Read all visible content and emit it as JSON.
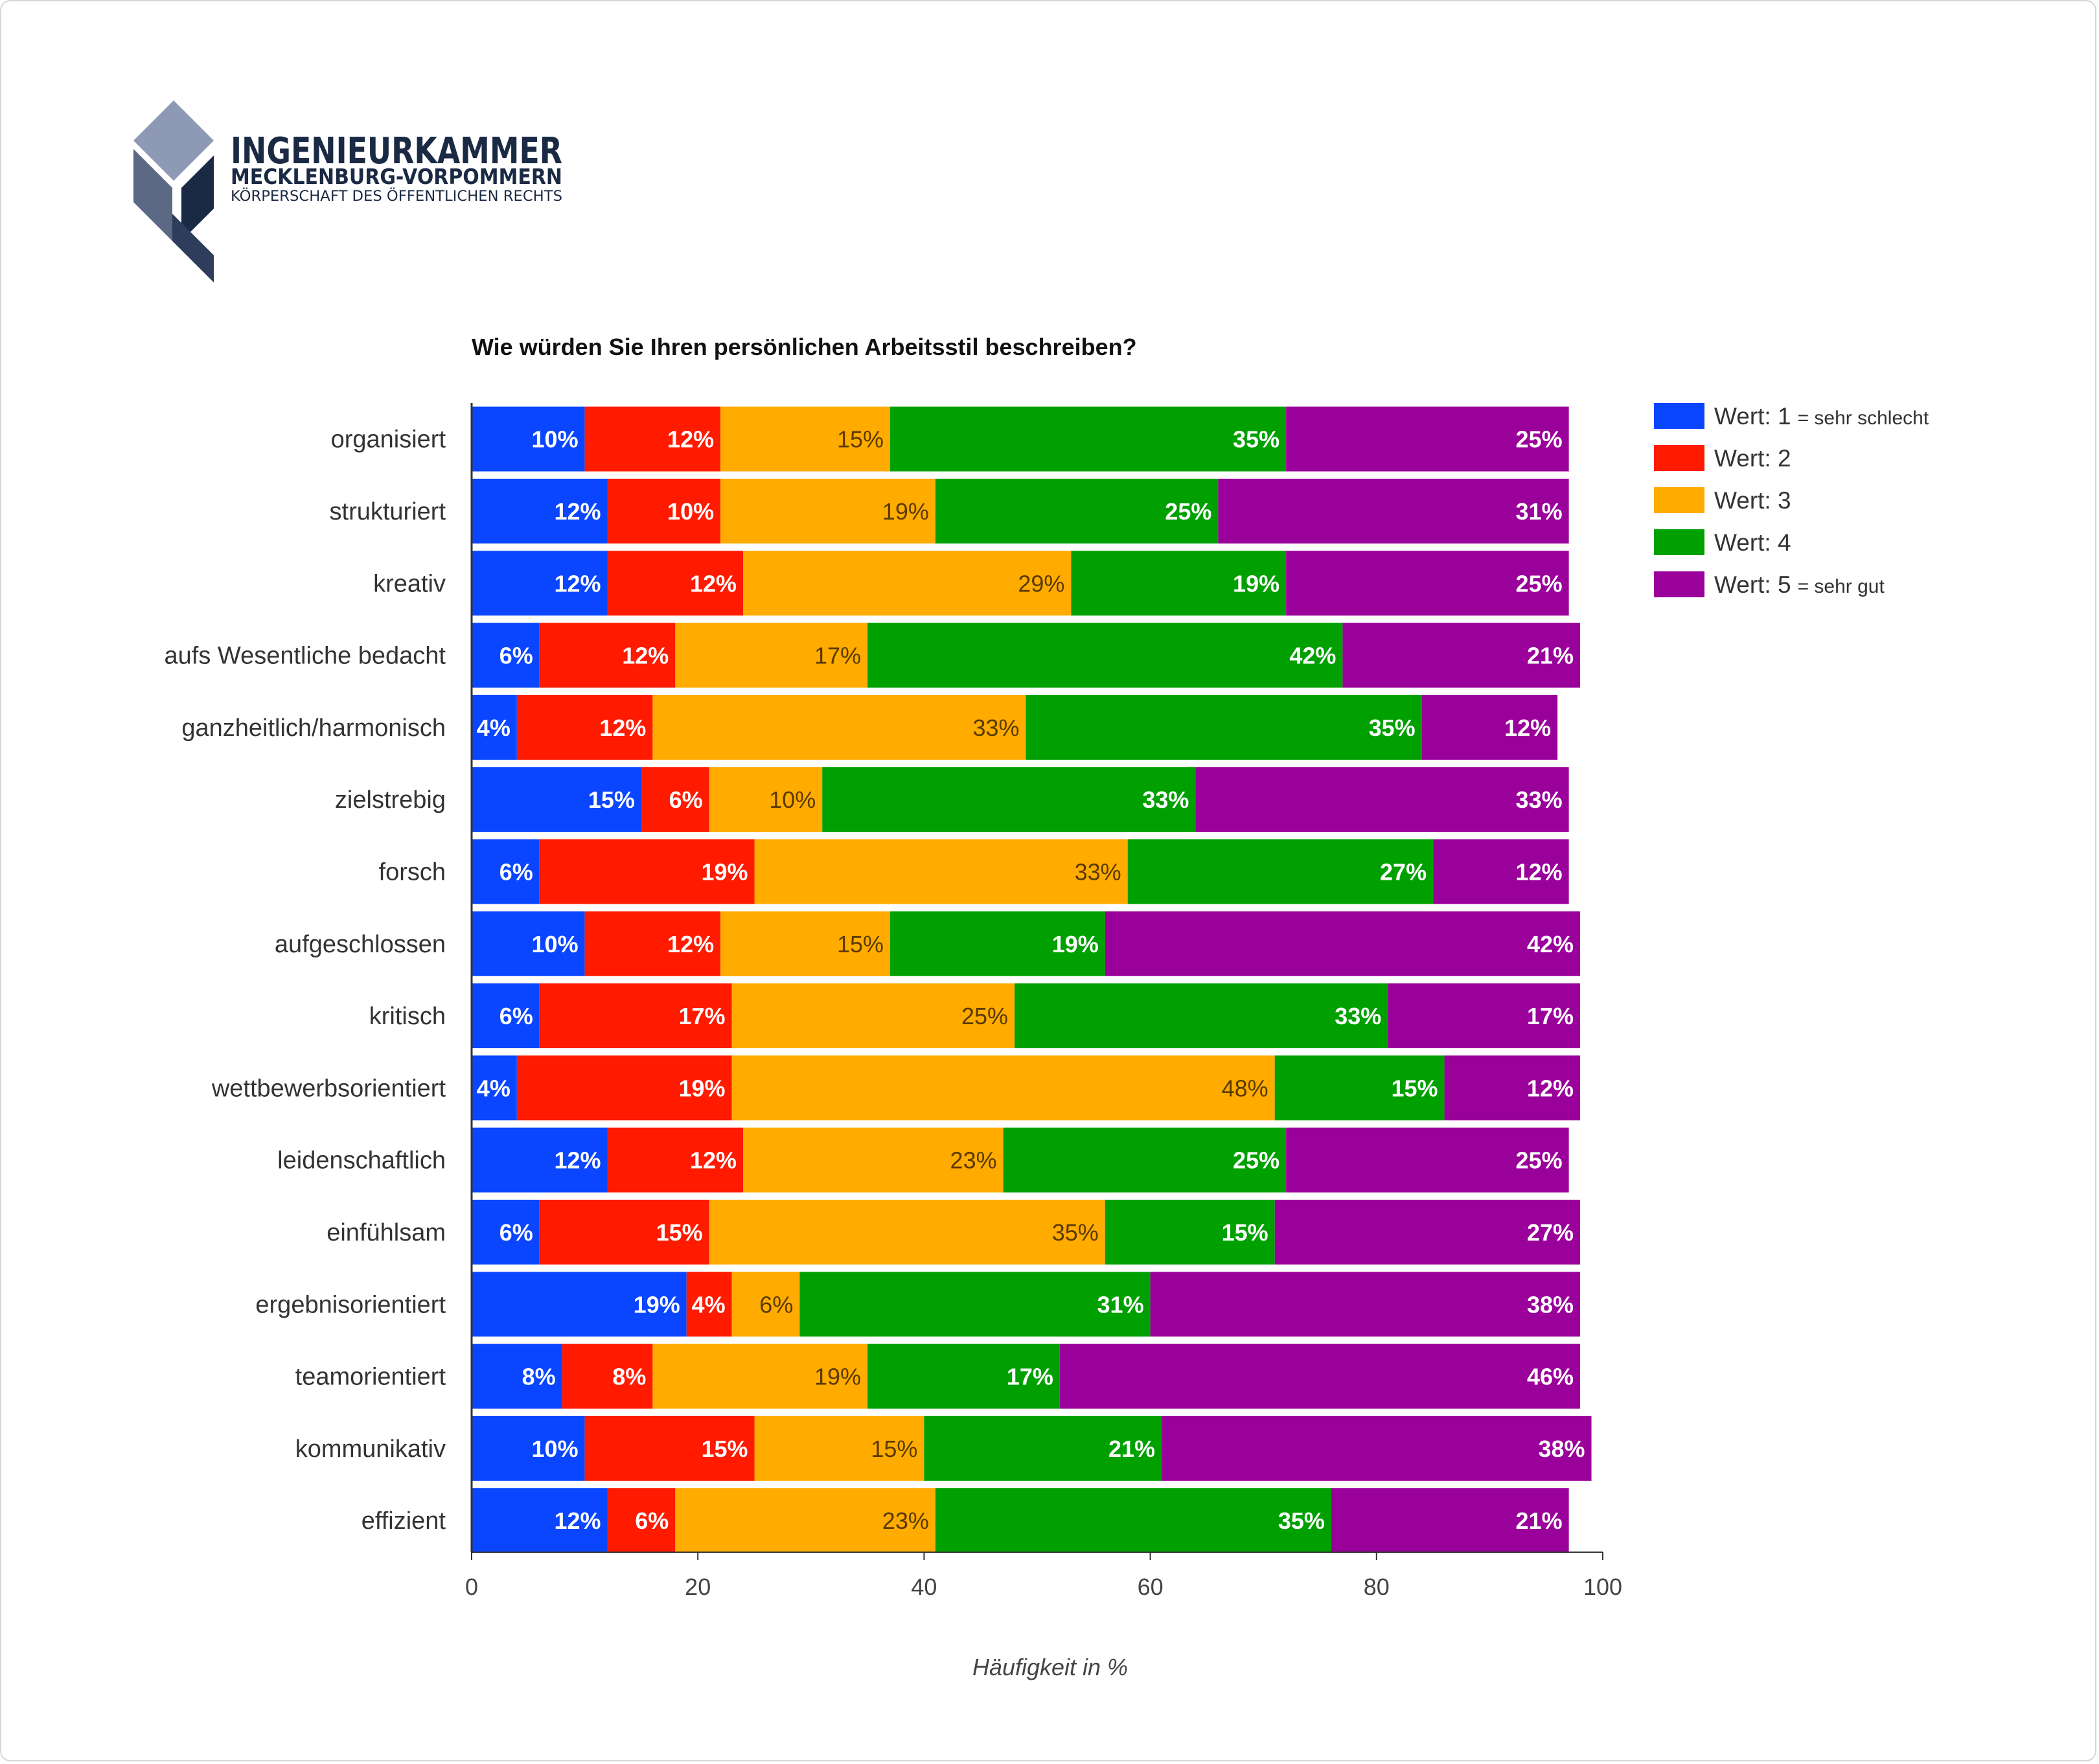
{
  "logo": {
    "line1": "INGENIEURKAMMER",
    "line2": "MECKLENBURG-VORPOMMERN",
    "line3": "KÖRPERSCHAFT DES ÖFFENTLICHEN RECHTS"
  },
  "colors": {
    "v1": "#0a46ff",
    "v2": "#ff1a00",
    "v3": "#ffab00",
    "v4": "#00a000",
    "v5": "#9a009a",
    "logo_light": "#8e9ab5",
    "logo_dark": "#1b2a44"
  },
  "chart_data": {
    "type": "bar",
    "orientation": "horizontal",
    "stacked": true,
    "title": "Wie würden Sie Ihren persönlichen Arbeitsstil beschreiben?",
    "xlabel": "Häufigkeit in %",
    "ylabel": "",
    "xlim": [
      0,
      100
    ],
    "xticks": [
      "0",
      "20",
      "40",
      "60",
      "80",
      "100"
    ],
    "legend_position": "right",
    "grid": false,
    "categories": [
      "organisiert",
      "strukturiert",
      "kreativ",
      "aufs Wesentliche bedacht",
      "ganzheitlich/harmonisch",
      "zielstrebig",
      "forsch",
      "aufgeschlossen",
      "kritisch",
      "wettbewerbsorientiert",
      "leidenschaftlich",
      "einfühlsam",
      "ergebnisorientiert",
      "teamorientiert",
      "kommunikativ",
      "effizient"
    ],
    "series": [
      {
        "name": "Wert:  1",
        "note": "= sehr schlecht",
        "values": [
          10,
          12,
          12,
          6,
          4,
          15,
          6,
          10,
          6,
          4,
          12,
          6,
          19,
          8,
          10,
          12
        ]
      },
      {
        "name": "Wert:  2",
        "note": "",
        "values": [
          12,
          10,
          12,
          12,
          12,
          6,
          19,
          12,
          17,
          19,
          12,
          15,
          4,
          8,
          15,
          6
        ]
      },
      {
        "name": "Wert:  3",
        "note": "",
        "values": [
          15,
          19,
          29,
          17,
          33,
          10,
          33,
          15,
          25,
          48,
          23,
          35,
          6,
          19,
          15,
          23
        ]
      },
      {
        "name": "Wert:  4",
        "note": "",
        "values": [
          35,
          25,
          19,
          42,
          35,
          33,
          27,
          19,
          33,
          15,
          25,
          15,
          31,
          17,
          21,
          35
        ]
      },
      {
        "name": "Wert:  5",
        "note": "= sehr gut",
        "values": [
          25,
          31,
          25,
          21,
          12,
          33,
          12,
          42,
          17,
          12,
          25,
          27,
          38,
          46,
          38,
          21
        ]
      }
    ]
  }
}
